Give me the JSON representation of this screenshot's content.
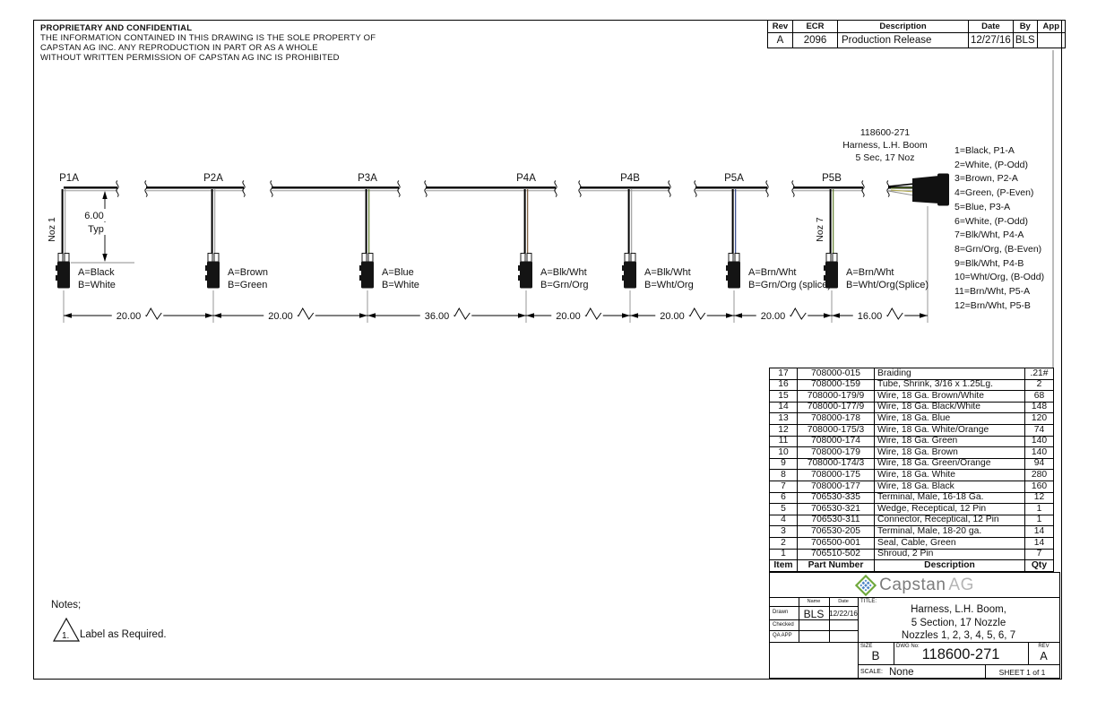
{
  "notice": {
    "title": "PROPRIETARY AND CONFIDENTIAL",
    "line1": "THE INFORMATION CONTAINED IN THIS DRAWING IS THE SOLE PROPERTY OF",
    "line2": "CAPSTAN AG INC. ANY REPRODUCTION IN PART OR AS A WHOLE",
    "line3": "WITHOUT WRITTEN PERMISSION OF CAPSTAN AG INC IS PROHIBITED"
  },
  "revision_table": {
    "headers": [
      "Rev",
      "ECR",
      "Description",
      "Date",
      "By",
      "App"
    ],
    "row": {
      "rev": "A",
      "ecr": "2096",
      "description": "Production Release",
      "date": "12/27/16",
      "by": "BLS",
      "app": ""
    }
  },
  "diagram": {
    "harness_label": {
      "line1": "118600-271",
      "line2": "Harness, L.H. Boom",
      "line3": "5 Sec, 17 Noz"
    },
    "typ_dimension": {
      "value": "6.00",
      "suffix": "Typ"
    },
    "connectors": [
      {
        "name": "P1A",
        "noz": "Noz 1",
        "wire_a": "A=Black",
        "wire_b": "B=White"
      },
      {
        "name": "P2A",
        "wire_a": "A=Brown",
        "wire_b": "B=Green"
      },
      {
        "name": "P3A",
        "wire_a": "A=Blue",
        "wire_b": "B=White"
      },
      {
        "name": "P4A",
        "wire_a": "A=Blk/Wht",
        "wire_b": "B=Grn/Org"
      },
      {
        "name": "P4B",
        "wire_a": "A=Blk/Wht",
        "wire_b": "B=Wht/Org"
      },
      {
        "name": "P5A",
        "wire_a": "A=Brn/Wht",
        "wire_b": "B=Grn/Org (splice)"
      },
      {
        "name": "P5B",
        "noz": "Noz 7",
        "wire_a": "A=Brn/Wht",
        "wire_b": "B=Wht/Org(Splice)"
      }
    ],
    "spacings": [
      "20.00",
      "20.00",
      "36.00",
      "20.00",
      "20.00",
      "20.00",
      "16.00"
    ],
    "wire_list": [
      "1=Black, P1-A",
      "2=White, (P-Odd)",
      "3=Brown, P2-A",
      "4=Green, (P-Even)",
      "5=Blue, P3-A",
      "6=White, (P-Odd)",
      "7=Blk/Wht, P4-A",
      "8=Grn/Org, (B-Even)",
      "9=Blk/Wht, P4-B",
      "10=Wht/Org, (B-Odd)",
      "11=Brn/Wht, P5-A",
      "12=Brn/Wht, P5-B"
    ]
  },
  "bom": {
    "headers": [
      "Item",
      "Part Number",
      "Description",
      "Qty"
    ],
    "rows": [
      [
        "17",
        "708000-015",
        "Braiding",
        ".21#"
      ],
      [
        "16",
        "708000-159",
        "Tube, Shrink, 3/16 x 1.25Lg.",
        "2"
      ],
      [
        "15",
        "708000-179/9",
        "Wire, 18 Ga. Brown/White",
        "68"
      ],
      [
        "14",
        "708000-177/9",
        "Wire, 18 Ga. Black/White",
        "148"
      ],
      [
        "13",
        "708000-178",
        "Wire, 18 Ga. Blue",
        "120"
      ],
      [
        "12",
        "708000-175/3",
        "Wire, 18 Ga. White/Orange",
        "74"
      ],
      [
        "11",
        "708000-174",
        "Wire, 18 Ga. Green",
        "140"
      ],
      [
        "10",
        "708000-179",
        "Wire, 18 Ga. Brown",
        "140"
      ],
      [
        "9",
        "708000-174/3",
        "Wire, 18 Ga. Green/Orange",
        "94"
      ],
      [
        "8",
        "708000-175",
        "Wire, 18 Ga. White",
        "280"
      ],
      [
        "7",
        "708000-177",
        "Wire, 18 Ga. Black",
        "160"
      ],
      [
        "6",
        "706530-335",
        "Terminal, Male, 16-18 Ga.",
        "12"
      ],
      [
        "5",
        "706530-321",
        "Wedge, Receptical, 12 Pin",
        "1"
      ],
      [
        "4",
        "706530-311",
        "Connector, Receptical, 12 Pin",
        "1"
      ],
      [
        "3",
        "706530-205",
        "Terminal, Male, 18-20 ga.",
        "14"
      ],
      [
        "2",
        "706500-001",
        "Seal, Cable, Green",
        "14"
      ],
      [
        "1",
        "706510-502",
        "Shroud, 2 Pin",
        "7"
      ]
    ]
  },
  "notes": {
    "heading": "Notes;",
    "note1_marker": "1.",
    "note1_text": "Label as Required."
  },
  "title_block": {
    "brand": {
      "name": "Capstan",
      "suffix": "AG"
    },
    "sign": {
      "name_header": "Name",
      "date_header": "Date",
      "drawn_label": "Drawn",
      "drawn_name": "BLS",
      "drawn_date": "12/22/16",
      "checked_label": "Checked",
      "qa_label": "QA APP"
    },
    "title_label": "TITLE:",
    "title_line1": "Harness, L.H. Boom,",
    "title_line2": "5 Section, 17 Nozzle",
    "title_line3": "Nozzles 1, 2, 3, 4, 5, 6, 7",
    "size_label": "SIZE",
    "size": "B",
    "dwg_label": "DWG No:",
    "dwg_no": "118600-271",
    "rev_label": "REV",
    "rev": "A",
    "scale_label": "SCALE:",
    "scale": "None",
    "sheet": "SHEET 1 of 1"
  },
  "colors": {
    "line": "#000000",
    "secondary_line": "#8c8c8c",
    "brand_green": "#6fa83c",
    "brand_blue": "#4a82c4",
    "brand_gray": "#7c7c7c",
    "brand_gray_light": "#b5b5b5"
  }
}
